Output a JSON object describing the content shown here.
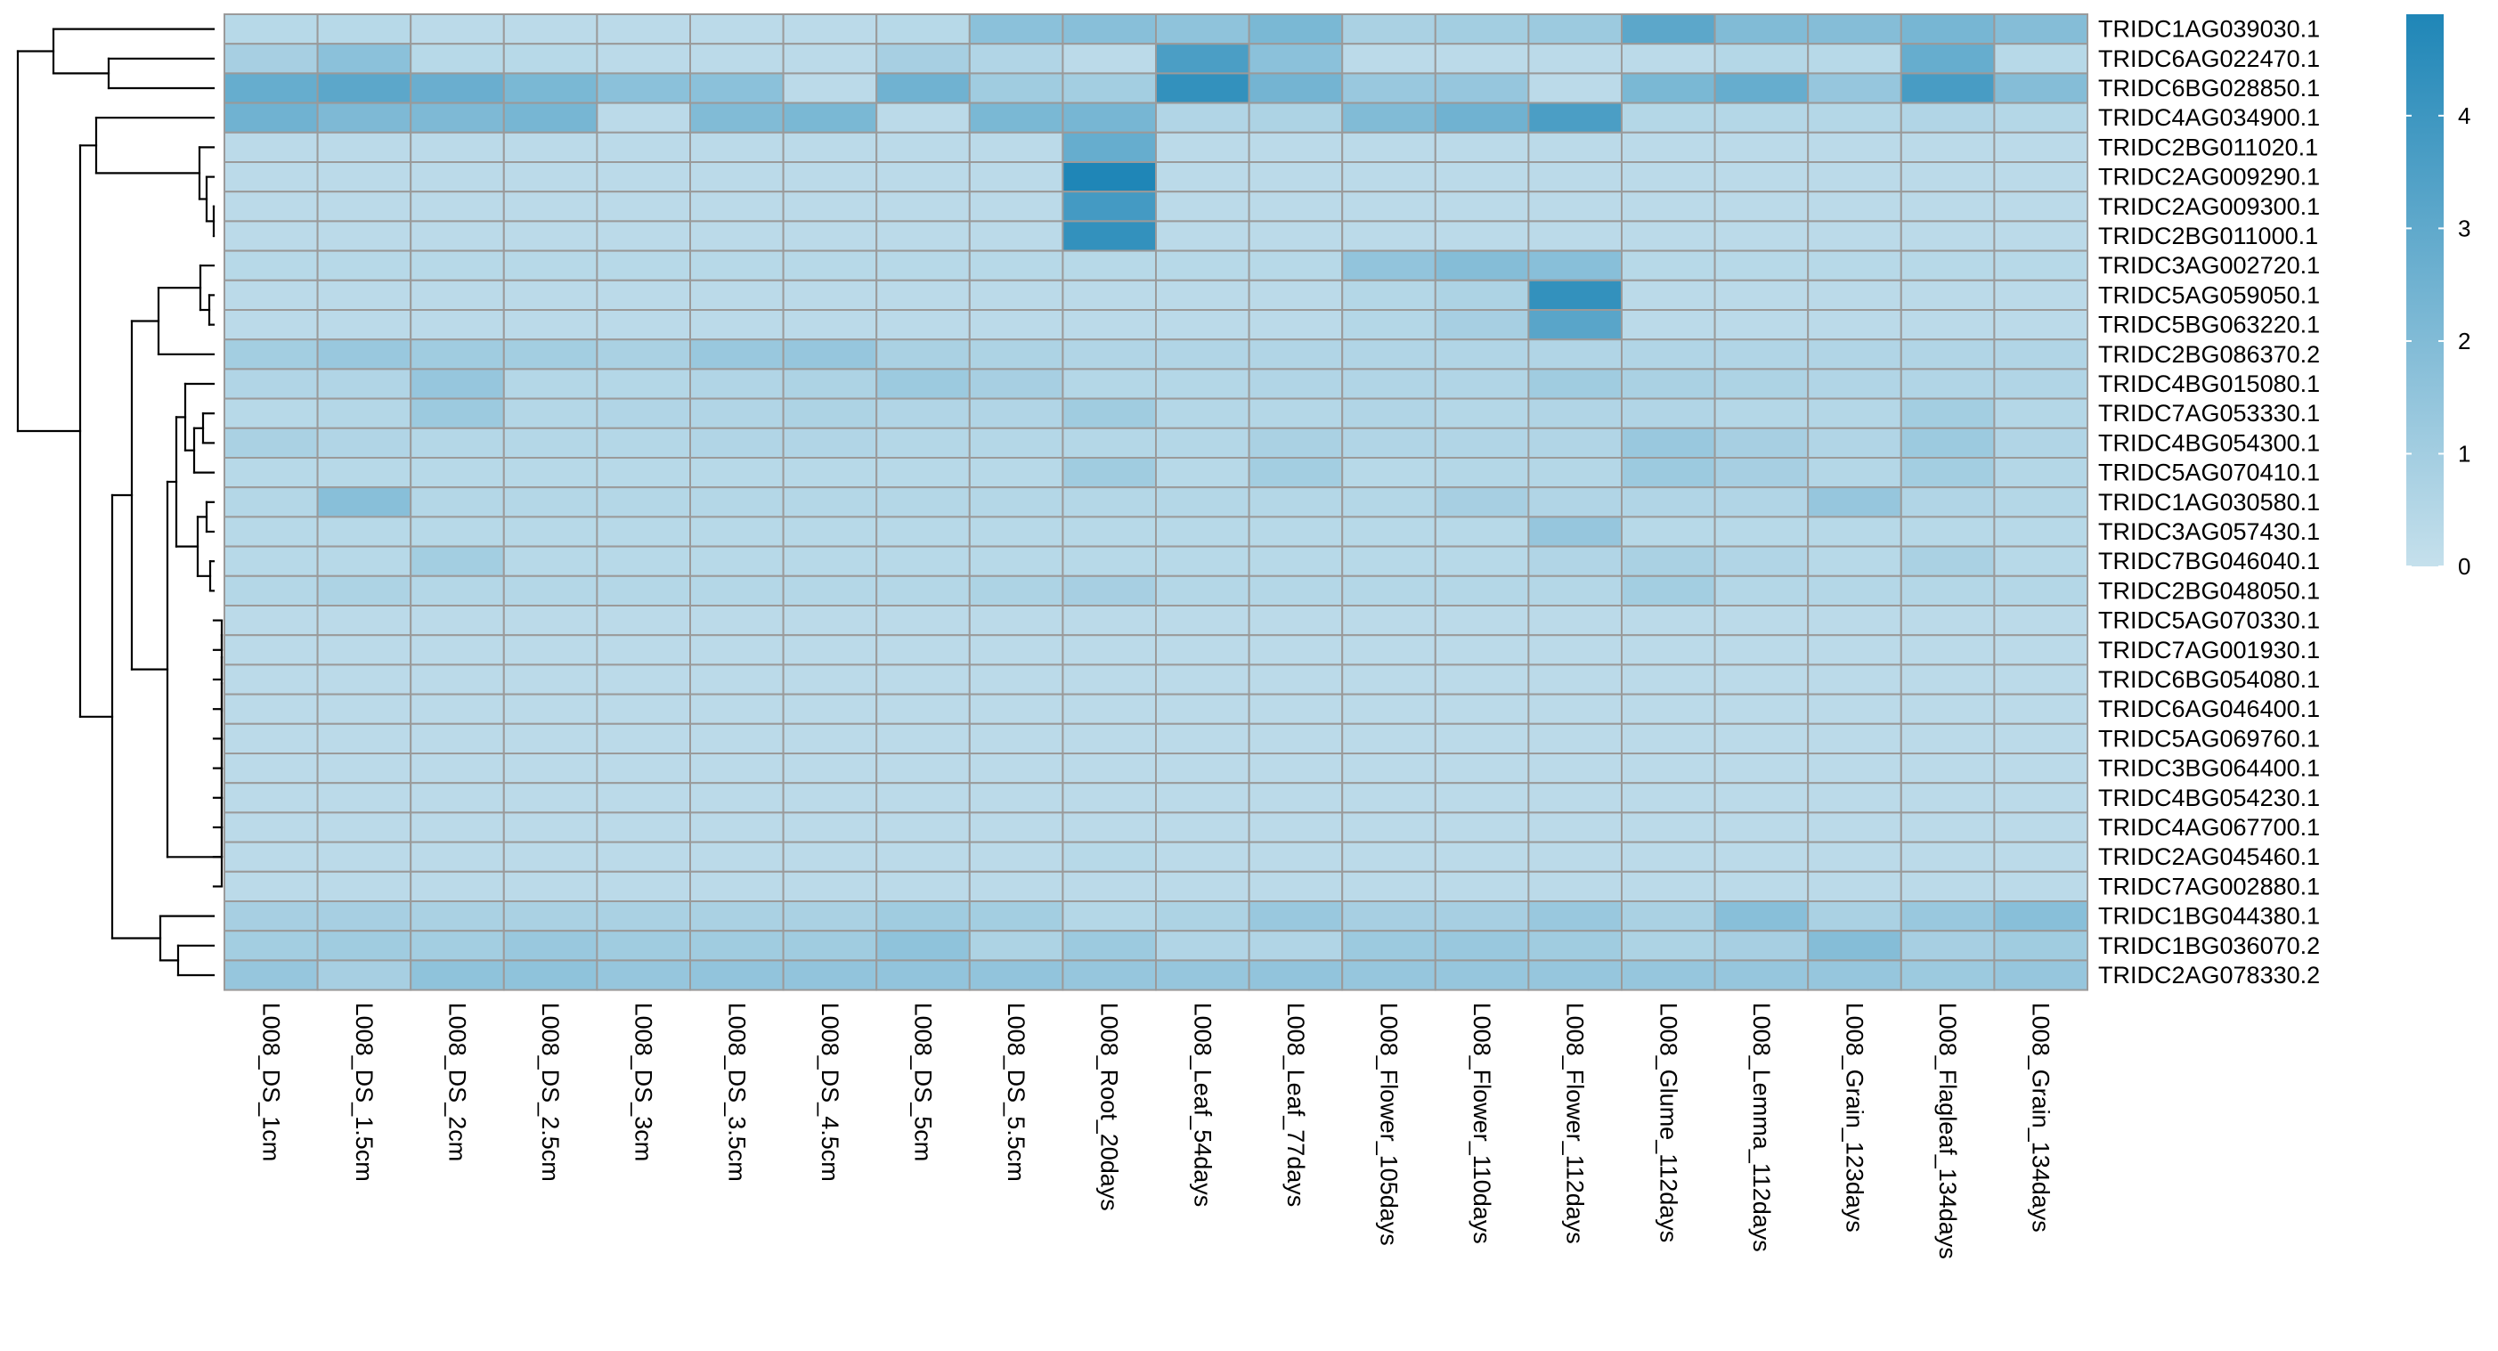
{
  "chart_data": {
    "type": "heatmap",
    "title": "",
    "columns": [
      "L008_DS_1cm",
      "L008_DS_1.5cm",
      "L008_DS_2cm",
      "L008_DS_2.5cm",
      "L008_DS_3cm",
      "L008_DS_3.5cm",
      "L008_DS_4.5cm",
      "L008_DS_5cm",
      "L008_DS_5.5cm",
      "L008_Root_20days",
      "L008_Leaf_54days",
      "L008_Leaf_77days",
      "L008_Flower_105days",
      "L008_Flower_110days",
      "L008_Flower_112days",
      "L008_Glume_112days",
      "L008_Lemma_112days",
      "L008_Grain_123days",
      "L008_Flagleaf_134days",
      "L008_Grain_134days"
    ],
    "rows": [
      "TRIDC1AG039030.1",
      "TRIDC6AG022470.1",
      "TRIDC6BG028850.1",
      "TRIDC4AG034900.1",
      "TRIDC2BG011020.1",
      "TRIDC2AG009290.1",
      "TRIDC2AG009300.1",
      "TRIDC2BG011000.1",
      "TRIDC3AG002720.1",
      "TRIDC5AG059050.1",
      "TRIDC5BG063220.1",
      "TRIDC2BG086370.2",
      "TRIDC4BG015080.1",
      "TRIDC7AG053330.1",
      "TRIDC4BG054300.1",
      "TRIDC5AG070410.1",
      "TRIDC1AG030580.1",
      "TRIDC3AG057430.1",
      "TRIDC7BG046040.1",
      "TRIDC2BG048050.1",
      "TRIDC5AG070330.1",
      "TRIDC7AG001930.1",
      "TRIDC6BG054080.1",
      "TRIDC6AG046400.1",
      "TRIDC5AG069760.1",
      "TRIDC3BG064400.1",
      "TRIDC4BG054230.1",
      "TRIDC4AG067700.1",
      "TRIDC2AG045460.1",
      "TRIDC7AG002880.1",
      "TRIDC1BG044380.1",
      "TRIDC1BG036070.2",
      "TRIDC2AG078330.2"
    ],
    "values": [
      [
        0.4,
        0.4,
        0.3,
        0.3,
        0.3,
        0.3,
        0.3,
        0.4,
        1.7,
        1.8,
        1.6,
        2.2,
        0.8,
        1.0,
        1.2,
        3.1,
        2.0,
        1.9,
        2.3,
        1.9
      ],
      [
        0.9,
        1.7,
        0.4,
        0.4,
        0.3,
        0.3,
        0.3,
        0.9,
        0.6,
        0.3,
        3.6,
        1.7,
        0.3,
        0.3,
        0.3,
        0.3,
        0.5,
        0.4,
        2.8,
        0.4
      ],
      [
        2.8,
        3.1,
        2.7,
        2.2,
        1.7,
        1.7,
        0.3,
        2.5,
        1.1,
        1.0,
        4.3,
        2.4,
        1.3,
        1.4,
        0.3,
        2.2,
        2.8,
        1.4,
        3.7,
        1.9
      ],
      [
        2.5,
        2.1,
        2.1,
        2.3,
        0.3,
        2.0,
        2.2,
        0.3,
        2.2,
        2.3,
        0.6,
        0.7,
        2.0,
        2.5,
        3.6,
        0.5,
        0.5,
        0.5,
        0.6,
        0.5
      ],
      [
        0.3,
        0.3,
        0.3,
        0.3,
        0.3,
        0.3,
        0.3,
        0.3,
        0.3,
        2.8,
        0.3,
        0.3,
        0.3,
        0.3,
        0.3,
        0.3,
        0.3,
        0.3,
        0.3,
        0.3
      ],
      [
        0.3,
        0.3,
        0.3,
        0.3,
        0.3,
        0.3,
        0.3,
        0.3,
        0.3,
        4.9,
        0.3,
        0.3,
        0.3,
        0.3,
        0.3,
        0.3,
        0.3,
        0.3,
        0.3,
        0.3
      ],
      [
        0.3,
        0.3,
        0.3,
        0.3,
        0.3,
        0.3,
        0.3,
        0.3,
        0.3,
        3.8,
        0.3,
        0.3,
        0.3,
        0.3,
        0.3,
        0.3,
        0.3,
        0.3,
        0.3,
        0.3
      ],
      [
        0.3,
        0.3,
        0.3,
        0.3,
        0.3,
        0.3,
        0.3,
        0.3,
        0.3,
        4.3,
        0.3,
        0.3,
        0.3,
        0.3,
        0.3,
        0.3,
        0.3,
        0.3,
        0.3,
        0.3
      ],
      [
        0.4,
        0.4,
        0.4,
        0.4,
        0.4,
        0.4,
        0.4,
        0.4,
        0.4,
        0.4,
        0.4,
        0.4,
        1.5,
        1.9,
        1.8,
        0.4,
        0.4,
        0.4,
        0.4,
        0.4
      ],
      [
        0.3,
        0.3,
        0.3,
        0.3,
        0.3,
        0.3,
        0.3,
        0.3,
        0.3,
        0.3,
        0.3,
        0.3,
        0.5,
        0.7,
        4.3,
        0.3,
        0.3,
        0.3,
        0.3,
        0.3
      ],
      [
        0.3,
        0.3,
        0.3,
        0.3,
        0.3,
        0.3,
        0.3,
        0.3,
        0.3,
        0.3,
        0.3,
        0.3,
        0.5,
        0.9,
        3.2,
        0.3,
        0.3,
        0.3,
        0.3,
        0.3
      ],
      [
        1.0,
        1.3,
        1.1,
        1.0,
        0.8,
        1.3,
        1.4,
        0.8,
        0.7,
        0.6,
        0.6,
        0.6,
        0.6,
        0.6,
        0.6,
        0.6,
        0.6,
        0.6,
        0.6,
        0.6
      ],
      [
        0.6,
        0.6,
        1.4,
        0.5,
        0.5,
        0.6,
        0.7,
        1.2,
        0.9,
        0.5,
        0.5,
        0.6,
        0.6,
        0.6,
        1.1,
        0.8,
        0.7,
        0.6,
        0.6,
        0.6
      ],
      [
        0.4,
        0.5,
        1.2,
        0.5,
        0.6,
        0.6,
        0.7,
        0.6,
        0.6,
        1.1,
        0.5,
        0.5,
        0.6,
        0.5,
        0.6,
        0.6,
        0.5,
        0.5,
        1.0,
        0.5
      ],
      [
        0.8,
        0.6,
        0.5,
        0.5,
        0.5,
        0.6,
        0.6,
        0.5,
        0.5,
        0.5,
        0.5,
        0.8,
        0.6,
        0.6,
        0.6,
        1.3,
        0.9,
        0.6,
        1.2,
        0.6
      ],
      [
        0.4,
        0.4,
        0.4,
        0.4,
        0.4,
        0.4,
        0.4,
        0.4,
        0.4,
        1.1,
        0.4,
        1.0,
        0.4,
        0.5,
        0.5,
        1.2,
        0.9,
        0.5,
        1.0,
        0.5
      ],
      [
        0.5,
        1.8,
        0.5,
        0.5,
        0.5,
        0.5,
        0.5,
        0.5,
        0.5,
        0.5,
        0.5,
        0.5,
        0.5,
        0.9,
        0.6,
        0.6,
        0.6,
        1.4,
        0.6,
        0.5
      ],
      [
        0.4,
        0.4,
        0.4,
        0.4,
        0.4,
        0.4,
        0.4,
        0.4,
        0.4,
        0.4,
        0.4,
        0.4,
        0.4,
        0.4,
        1.4,
        0.4,
        0.4,
        0.4,
        0.4,
        0.4
      ],
      [
        0.4,
        0.4,
        1.0,
        0.4,
        0.4,
        0.4,
        0.4,
        0.4,
        0.4,
        0.4,
        0.4,
        0.4,
        0.4,
        0.4,
        0.6,
        0.8,
        0.6,
        0.4,
        0.8,
        0.4
      ],
      [
        0.5,
        0.7,
        0.5,
        0.5,
        0.5,
        0.5,
        0.5,
        0.5,
        0.7,
        0.9,
        0.5,
        0.5,
        0.5,
        0.5,
        0.5,
        1.0,
        0.5,
        0.5,
        0.5,
        0.5
      ],
      [
        0.3,
        0.3,
        0.3,
        0.3,
        0.3,
        0.3,
        0.3,
        0.3,
        0.3,
        0.3,
        0.3,
        0.3,
        0.3,
        0.3,
        0.3,
        0.3,
        0.3,
        0.3,
        0.3,
        0.3
      ],
      [
        0.3,
        0.3,
        0.3,
        0.3,
        0.3,
        0.3,
        0.3,
        0.3,
        0.3,
        0.3,
        0.3,
        0.3,
        0.3,
        0.3,
        0.3,
        0.3,
        0.3,
        0.3,
        0.3,
        0.3
      ],
      [
        0.3,
        0.3,
        0.3,
        0.3,
        0.3,
        0.3,
        0.3,
        0.3,
        0.3,
        0.3,
        0.3,
        0.3,
        0.3,
        0.3,
        0.3,
        0.3,
        0.3,
        0.3,
        0.3,
        0.3
      ],
      [
        0.3,
        0.3,
        0.3,
        0.3,
        0.3,
        0.3,
        0.3,
        0.3,
        0.3,
        0.3,
        0.3,
        0.3,
        0.3,
        0.3,
        0.3,
        0.3,
        0.3,
        0.3,
        0.3,
        0.3
      ],
      [
        0.3,
        0.3,
        0.3,
        0.3,
        0.3,
        0.3,
        0.3,
        0.3,
        0.3,
        0.3,
        0.3,
        0.3,
        0.3,
        0.3,
        0.3,
        0.3,
        0.3,
        0.3,
        0.3,
        0.3
      ],
      [
        0.3,
        0.3,
        0.3,
        0.3,
        0.3,
        0.3,
        0.3,
        0.3,
        0.3,
        0.3,
        0.3,
        0.3,
        0.3,
        0.3,
        0.3,
        0.3,
        0.3,
        0.3,
        0.3,
        0.3
      ],
      [
        0.3,
        0.3,
        0.3,
        0.3,
        0.3,
        0.3,
        0.3,
        0.3,
        0.3,
        0.3,
        0.3,
        0.3,
        0.3,
        0.3,
        0.3,
        0.3,
        0.3,
        0.3,
        0.3,
        0.3
      ],
      [
        0.3,
        0.3,
        0.3,
        0.3,
        0.3,
        0.3,
        0.3,
        0.3,
        0.3,
        0.3,
        0.3,
        0.3,
        0.3,
        0.3,
        0.3,
        0.3,
        0.3,
        0.3,
        0.3,
        0.3
      ],
      [
        0.3,
        0.3,
        0.3,
        0.3,
        0.3,
        0.3,
        0.3,
        0.3,
        0.3,
        0.4,
        0.3,
        0.3,
        0.3,
        0.3,
        0.3,
        0.3,
        0.3,
        0.3,
        0.3,
        0.3
      ],
      [
        0.3,
        0.3,
        0.3,
        0.3,
        0.3,
        0.3,
        0.3,
        0.3,
        0.3,
        0.3,
        0.3,
        0.3,
        0.3,
        0.3,
        0.3,
        0.3,
        0.3,
        0.3,
        0.3,
        0.3
      ],
      [
        0.9,
        0.9,
        0.8,
        0.8,
        0.8,
        0.8,
        0.8,
        1.1,
        1.0,
        0.5,
        0.7,
        1.3,
        0.9,
        0.9,
        1.3,
        0.8,
        1.8,
        0.8,
        1.3,
        1.8
      ],
      [
        1.0,
        1.1,
        1.0,
        1.3,
        1.1,
        1.1,
        1.1,
        1.6,
        0.7,
        1.2,
        0.6,
        0.6,
        1.2,
        1.3,
        1.1,
        0.7,
        0.9,
        1.9,
        0.9,
        1.1
      ],
      [
        1.4,
        0.9,
        1.6,
        1.6,
        1.4,
        1.5,
        1.5,
        1.5,
        1.5,
        1.4,
        1.4,
        1.5,
        1.4,
        1.4,
        1.4,
        1.4,
        1.4,
        1.4,
        1.2,
        1.4
      ]
    ],
    "colorscale": {
      "min": 0,
      "max": 4.9,
      "low": "#c5e0ec",
      "high": "#1f86b7"
    },
    "legend": {
      "ticks": [
        0,
        1,
        2,
        3,
        4
      ],
      "placement": "right"
    },
    "row_dendrogram": true,
    "grid": true
  }
}
